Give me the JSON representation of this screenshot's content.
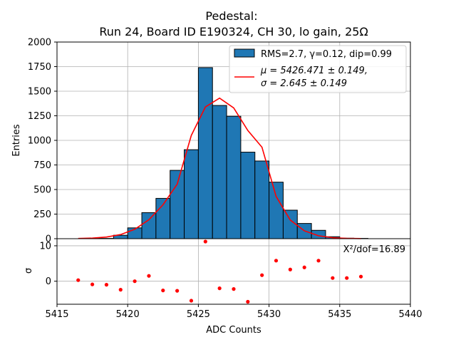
{
  "figure": {
    "title_line1": "Pedestal:",
    "title_line2": "Run 24, Board ID E190324, CH 30, lo gain, 25Ω"
  },
  "chart_data": [
    {
      "type": "bar",
      "panel": "histogram",
      "title": "Pedestal:\nRun 24, Board ID E190324, CH 30, lo gain, 25Ω",
      "xlabel": "ADC Counts",
      "ylabel": "Entries",
      "xlim": [
        5415,
        5440
      ],
      "ylim": [
        0,
        2000
      ],
      "grid": true,
      "legend_placement": "top-right",
      "bin_edges": [
        5417,
        5418,
        5419,
        5420,
        5421,
        5422,
        5423,
        5424,
        5425,
        5426,
        5427,
        5428,
        5429,
        5430,
        5431,
        5432,
        5433,
        5434,
        5435,
        5436,
        5437
      ],
      "bin_centers": [
        5417.5,
        5418.5,
        5419.5,
        5420.5,
        5421.5,
        5422.5,
        5423.5,
        5424.5,
        5425.5,
        5426.5,
        5427.5,
        5428.5,
        5429.5,
        5430.5,
        5431.5,
        5432.5,
        5433.5,
        5434.5,
        5435.5,
        5436.5
      ],
      "values": [
        3,
        3,
        35,
        110,
        265,
        410,
        695,
        905,
        1740,
        1355,
        1245,
        880,
        790,
        575,
        290,
        155,
        85,
        20,
        5,
        3
      ],
      "bar_color": "#1f77b4",
      "series": [
        {
          "name": "RMS=2.7, γ=0.12, dip=0.99",
          "kind": "histogram",
          "color": "#1f77b4"
        },
        {
          "name": "μ = 5426.471 ± 0.149,\nσ = 2.645 ± 0.149",
          "kind": "line",
          "color": "#ff0000",
          "x": [
            5416.5,
            5417.5,
            5418.5,
            5419.5,
            5420.5,
            5421.5,
            5422.5,
            5423.5,
            5424.5,
            5425.5,
            5426.5,
            5427.5,
            5428.5,
            5429.5,
            5430.5,
            5431.5,
            5432.5,
            5433.5,
            5434.5,
            5435.5,
            5436.5
          ],
          "y": [
            2,
            6,
            17,
            42,
            96,
            193,
            345,
            554,
            1050,
            1340,
            1430,
            1330,
            1100,
            930,
            430,
            190,
            80,
            30,
            10,
            3,
            1
          ]
        }
      ],
      "legend": [
        {
          "label": "RMS=2.7, γ=0.12, dip=0.99",
          "marker": "patch"
        },
        {
          "label_line1": "μ = 5426.471 ± 0.149,",
          "label_line2": "σ = 2.645 ± 0.149",
          "marker": "line"
        }
      ],
      "yticks": [
        0,
        250,
        500,
        750,
        1000,
        1250,
        1500,
        1750,
        2000
      ],
      "xticks": [
        5415,
        5420,
        5425,
        5430,
        5435,
        5440
      ]
    },
    {
      "type": "scatter",
      "panel": "residuals",
      "xlabel": "ADC Counts",
      "ylabel": "σ",
      "xlim": [
        5415,
        5440
      ],
      "ylim": [
        -6.5,
        12
      ],
      "grid": true,
      "annotation": "X²/dof=16.89",
      "color": "#ff0000",
      "x": [
        5416.5,
        5417.5,
        5418.5,
        5419.5,
        5420.5,
        5421.5,
        5422.5,
        5423.5,
        5424.5,
        5425.5,
        5426.5,
        5427.5,
        5428.5,
        5429.5,
        5430.5,
        5431.5,
        5432.5,
        5433.5,
        5434.5,
        5435.5,
        5436.5
      ],
      "y": [
        0.3,
        -0.9,
        -1.0,
        -2.4,
        0.0,
        1.5,
        -2.6,
        -2.7,
        -5.5,
        11.2,
        -2.0,
        -2.2,
        -5.8,
        1.7,
        5.8,
        3.3,
        3.9,
        5.8,
        0.9,
        0.9,
        1.3
      ],
      "yticks": [
        0,
        10
      ],
      "xticks": [
        5415,
        5420,
        5425,
        5430,
        5435,
        5440
      ]
    }
  ]
}
